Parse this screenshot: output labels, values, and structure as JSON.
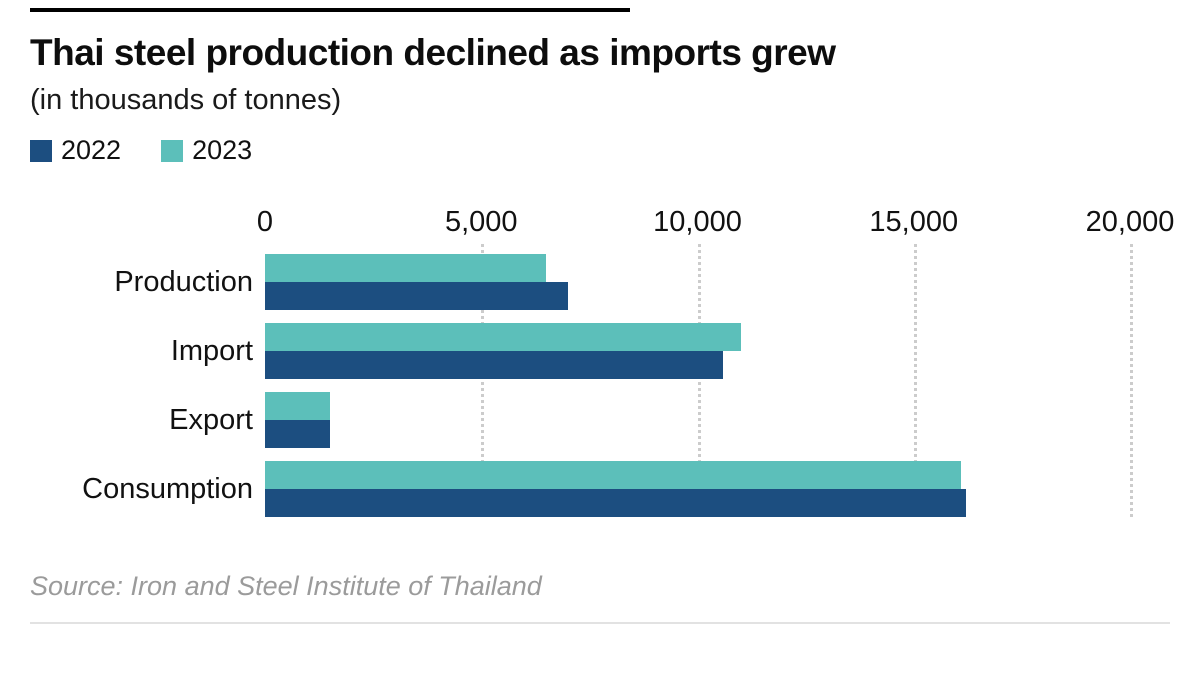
{
  "source": "Source: Iron and Steel Institute of Thailand",
  "chart_data": {
    "type": "bar",
    "orientation": "horizontal",
    "title": "Thai steel production declined as imports grew",
    "subtitle": "(in thousands of tonnes)",
    "categories": [
      "Production",
      "Import",
      "Export",
      "Consumption"
    ],
    "series": [
      {
        "name": "2022",
        "color": "#1c4e80",
        "values": [
          7000,
          10600,
          1500,
          16200
        ]
      },
      {
        "name": "2023",
        "color": "#5cbfba",
        "values": [
          6500,
          11000,
          1500,
          16100
        ]
      }
    ],
    "xlim": [
      0,
      20000
    ],
    "xticks": [
      0,
      5000,
      10000,
      15000,
      20000
    ],
    "xtick_labels": [
      "0",
      "5,000",
      "10,000",
      "15,000",
      "20,000"
    ],
    "grid": "dotted-vertical-gridlines",
    "legend_position": "top-left",
    "bar_group_order_top_to_bottom": [
      "2023",
      "2022"
    ]
  }
}
